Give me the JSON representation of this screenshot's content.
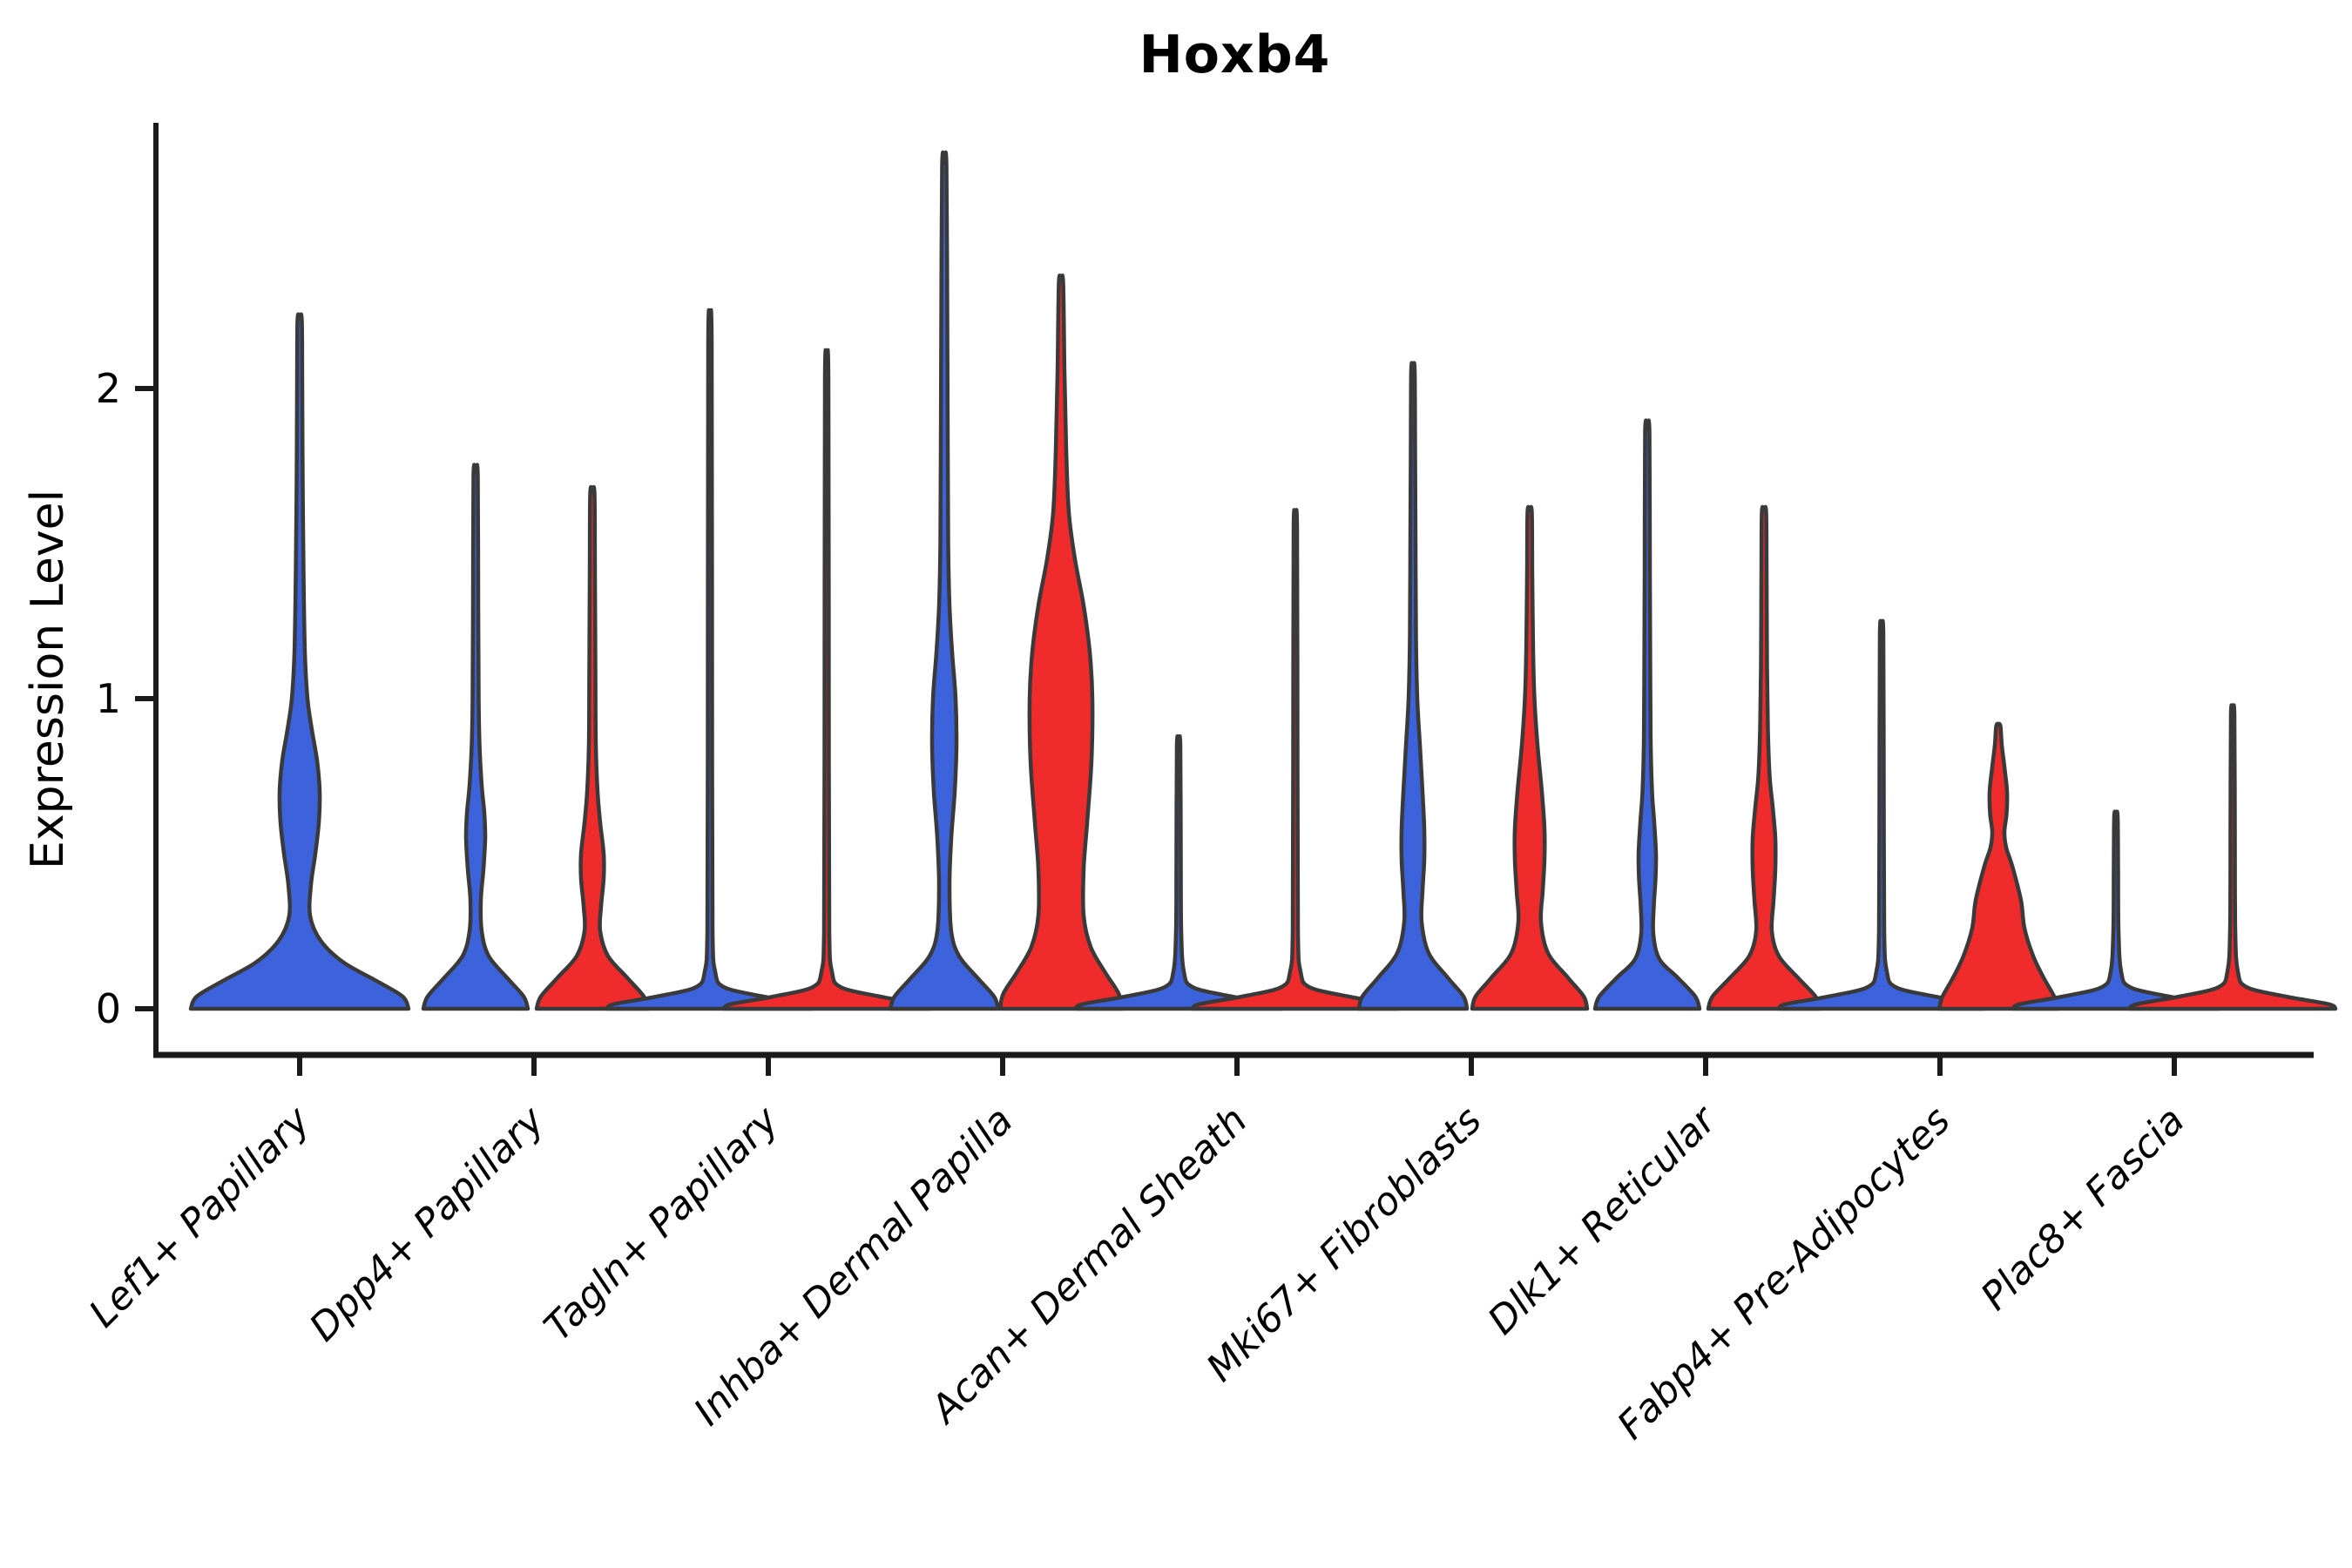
{
  "title": "Hoxb4",
  "colors": {
    "blue": "#3C63DB",
    "red": "#F02B2B",
    "outline": "#3A3A3A",
    "axis": "#1A1A1A",
    "text": "#000000",
    "background": "#FFFFFF"
  },
  "chart_data": {
    "type": "violin",
    "title": "Hoxb4",
    "xlabel": "",
    "ylabel": "Expression Level",
    "yticks": [
      0,
      1,
      2
    ],
    "ylim": [
      0,
      2.86
    ],
    "grid": false,
    "legend": "none",
    "categories": [
      "Lef1+ Papillary",
      "Dpp4+ Papillary",
      "Tagln+ Papillary",
      "Inhba+ Dermal Papilla",
      "Acan+ Dermal Sheath",
      "Mki67+ Fibroblasts",
      "Dlk1+ Reticular",
      "Fabp4+ Pre-Adipocytes",
      "Plac8+ Fascia"
    ],
    "profile_note": "profile = [expression_value, half_width_px]; violin outline mirrored around its center",
    "groups": [
      {
        "category": "Lef1+ Papillary",
        "violins": [
          {
            "series": "blue",
            "position": "center",
            "max": 2.22,
            "profile": [
              [
                0,
                125
              ],
              [
                0.04,
                118
              ],
              [
                0.09,
                88
              ],
              [
                0.15,
                50
              ],
              [
                0.22,
                24
              ],
              [
                0.3,
                12
              ],
              [
                0.4,
                13
              ],
              [
                0.5,
                18
              ],
              [
                0.6,
                22
              ],
              [
                0.7,
                23
              ],
              [
                0.8,
                20
              ],
              [
                0.9,
                14
              ],
              [
                1.0,
                9
              ],
              [
                1.15,
                6
              ],
              [
                1.4,
                4.5
              ],
              [
                1.7,
                3.5
              ],
              [
                2.0,
                3
              ],
              [
                2.22,
                2.5
              ]
            ]
          }
        ]
      },
      {
        "category": "Dpp4+ Papillary",
        "violins": [
          {
            "series": "blue",
            "position": "left",
            "max": 1.72,
            "profile": [
              [
                0,
                60
              ],
              [
                0.04,
                55
              ],
              [
                0.1,
                36
              ],
              [
                0.17,
                15
              ],
              [
                0.25,
                7
              ],
              [
                0.35,
                6
              ],
              [
                0.45,
                9
              ],
              [
                0.55,
                11
              ],
              [
                0.63,
                10
              ],
              [
                0.72,
                7
              ],
              [
                0.85,
                4.5
              ],
              [
                1.0,
                3.5
              ],
              [
                1.3,
                3
              ],
              [
                1.72,
                2.5
              ]
            ]
          },
          {
            "series": "red",
            "position": "right",
            "max": 1.66,
            "profile": [
              [
                0,
                64
              ],
              [
                0.04,
                59
              ],
              [
                0.1,
                40
              ],
              [
                0.17,
                18
              ],
              [
                0.25,
                9
              ],
              [
                0.33,
                10
              ],
              [
                0.42,
                13
              ],
              [
                0.5,
                13
              ],
              [
                0.6,
                9
              ],
              [
                0.7,
                6
              ],
              [
                0.85,
                4
              ],
              [
                1.1,
                3.5
              ],
              [
                1.4,
                3
              ],
              [
                1.66,
                2.5
              ]
            ]
          }
        ]
      },
      {
        "category": "Tagln+ Papillary",
        "violins": [
          {
            "series": "blue",
            "position": "left",
            "max": 2.15,
            "profile": [
              [
                0,
                118
              ],
              [
                0.015,
                110
              ],
              [
                0.04,
                60
              ],
              [
                0.07,
                16
              ],
              [
                0.12,
                6
              ],
              [
                0.25,
                3
              ],
              [
                0.8,
                2.5
              ],
              [
                2.15,
                2
              ]
            ]
          },
          {
            "series": "red",
            "position": "right",
            "max": 2.03,
            "profile": [
              [
                0,
                118
              ],
              [
                0.015,
                110
              ],
              [
                0.04,
                60
              ],
              [
                0.07,
                16
              ],
              [
                0.12,
                6
              ],
              [
                0.25,
                3
              ],
              [
                0.8,
                2.5
              ],
              [
                2.03,
                2
              ]
            ]
          }
        ]
      },
      {
        "category": "Inhba+ Dermal Papilla",
        "violins": [
          {
            "series": "blue",
            "position": "left",
            "max": 2.72,
            "profile": [
              [
                0,
                62
              ],
              [
                0.04,
                57
              ],
              [
                0.1,
                38
              ],
              [
                0.17,
                17
              ],
              [
                0.25,
                8
              ],
              [
                0.4,
                6
              ],
              [
                0.55,
                8
              ],
              [
                0.7,
                12
              ],
              [
                0.85,
                14
              ],
              [
                1.0,
                13
              ],
              [
                1.15,
                9
              ],
              [
                1.3,
                6
              ],
              [
                1.5,
                4.5
              ],
              [
                1.8,
                4
              ],
              [
                2.2,
                3.5
              ],
              [
                2.72,
                2.5
              ]
            ]
          },
          {
            "series": "red",
            "position": "right",
            "max": 2.34,
            "profile": [
              [
                0,
                70
              ],
              [
                0.05,
                66
              ],
              [
                0.12,
                50
              ],
              [
                0.2,
                34
              ],
              [
                0.3,
                26
              ],
              [
                0.45,
                26
              ],
              [
                0.6,
                30
              ],
              [
                0.8,
                35
              ],
              [
                1.0,
                36
              ],
              [
                1.15,
                33
              ],
              [
                1.3,
                26
              ],
              [
                1.45,
                16
              ],
              [
                1.6,
                9
              ],
              [
                1.8,
                6
              ],
              [
                2.05,
                4
              ],
              [
                2.34,
                2.5
              ]
            ]
          }
        ]
      },
      {
        "category": "Acan+ Dermal Sheath",
        "violins": [
          {
            "series": "blue",
            "position": "left",
            "max": 0.85,
            "profile": [
              [
                0,
                118
              ],
              [
                0.015,
                110
              ],
              [
                0.04,
                60
              ],
              [
                0.07,
                16
              ],
              [
                0.12,
                6
              ],
              [
                0.25,
                3
              ],
              [
                0.5,
                2.5
              ],
              [
                0.85,
                2
              ]
            ]
          },
          {
            "series": "red",
            "position": "right",
            "max": 1.55,
            "profile": [
              [
                0,
                118
              ],
              [
                0.015,
                110
              ],
              [
                0.04,
                60
              ],
              [
                0.07,
                16
              ],
              [
                0.12,
                6
              ],
              [
                0.25,
                3
              ],
              [
                0.8,
                2.5
              ],
              [
                1.55,
                2
              ]
            ]
          }
        ]
      },
      {
        "category": "Mki67+ Fibroblasts",
        "violins": [
          {
            "series": "blue",
            "position": "left",
            "max": 2.06,
            "profile": [
              [
                0,
                62
              ],
              [
                0.04,
                58
              ],
              [
                0.1,
                40
              ],
              [
                0.18,
                18
              ],
              [
                0.28,
                10
              ],
              [
                0.38,
                11
              ],
              [
                0.48,
                13
              ],
              [
                0.58,
                13
              ],
              [
                0.7,
                11
              ],
              [
                0.85,
                8
              ],
              [
                1.0,
                5
              ],
              [
                1.2,
                3.5
              ],
              [
                1.5,
                3
              ],
              [
                1.8,
                2.5
              ],
              [
                2.06,
                2
              ]
            ]
          },
          {
            "series": "red",
            "position": "right",
            "max": 1.6,
            "profile": [
              [
                0,
                66
              ],
              [
                0.04,
                62
              ],
              [
                0.1,
                44
              ],
              [
                0.18,
                21
              ],
              [
                0.28,
                13
              ],
              [
                0.38,
                15
              ],
              [
                0.48,
                17
              ],
              [
                0.58,
                17
              ],
              [
                0.7,
                14
              ],
              [
                0.85,
                9
              ],
              [
                1.0,
                5.5
              ],
              [
                1.15,
                4
              ],
              [
                1.4,
                3
              ],
              [
                1.6,
                2.5
              ]
            ]
          }
        ]
      },
      {
        "category": "Dlk1+ Reticular",
        "violins": [
          {
            "series": "blue",
            "position": "left",
            "max": 1.86,
            "profile": [
              [
                0,
                60
              ],
              [
                0.04,
                55
              ],
              [
                0.1,
                35
              ],
              [
                0.16,
                14
              ],
              [
                0.24,
                7
              ],
              [
                0.33,
                7.5
              ],
              [
                0.42,
                9.5
              ],
              [
                0.5,
                10
              ],
              [
                0.6,
                8
              ],
              [
                0.7,
                5.5
              ],
              [
                0.85,
                4
              ],
              [
                1.05,
                3.5
              ],
              [
                1.4,
                3
              ],
              [
                1.86,
                2.5
              ]
            ]
          },
          {
            "series": "red",
            "position": "right",
            "max": 1.6,
            "profile": [
              [
                0,
                64
              ],
              [
                0.04,
                59
              ],
              [
                0.1,
                39
              ],
              [
                0.17,
                17
              ],
              [
                0.25,
                9
              ],
              [
                0.35,
                11
              ],
              [
                0.45,
                13
              ],
              [
                0.55,
                13
              ],
              [
                0.65,
                10
              ],
              [
                0.75,
                6.5
              ],
              [
                0.9,
                4.5
              ],
              [
                1.1,
                3.5
              ],
              [
                1.4,
                3
              ],
              [
                1.6,
                2.5
              ]
            ]
          }
        ]
      },
      {
        "category": "Fabp4+ Pre-Adipocytes",
        "violins": [
          {
            "series": "blue",
            "position": "left",
            "max": 1.21,
            "profile": [
              [
                0,
                118
              ],
              [
                0.015,
                110
              ],
              [
                0.04,
                60
              ],
              [
                0.07,
                16
              ],
              [
                0.12,
                6
              ],
              [
                0.25,
                3
              ],
              [
                0.7,
                2.5
              ],
              [
                1.21,
                2
              ]
            ]
          },
          {
            "series": "red",
            "position": "right",
            "max": 0.91,
            "profile": [
              [
                0,
                68
              ],
              [
                0.04,
                64
              ],
              [
                0.1,
                52
              ],
              [
                0.17,
                40
              ],
              [
                0.26,
                30
              ],
              [
                0.35,
                26
              ],
              [
                0.46,
                16
              ],
              [
                0.52,
                9
              ],
              [
                0.57,
                7
              ],
              [
                0.63,
                9.5
              ],
              [
                0.7,
                10
              ],
              [
                0.78,
                7
              ],
              [
                0.85,
                4
              ],
              [
                0.91,
                2.5
              ]
            ]
          }
        ]
      },
      {
        "category": "Plac8+ Fascia",
        "violins": [
          {
            "series": "blue",
            "position": "left",
            "max": 0.62,
            "profile": [
              [
                0,
                118
              ],
              [
                0.015,
                110
              ],
              [
                0.04,
                60
              ],
              [
                0.07,
                16
              ],
              [
                0.12,
                6
              ],
              [
                0.25,
                3
              ],
              [
                0.45,
                2.5
              ],
              [
                0.62,
                2
              ]
            ]
          },
          {
            "series": "red",
            "position": "right",
            "max": 0.95,
            "profile": [
              [
                0,
                118
              ],
              [
                0.015,
                110
              ],
              [
                0.04,
                60
              ],
              [
                0.07,
                16
              ],
              [
                0.12,
                6
              ],
              [
                0.25,
                3
              ],
              [
                0.6,
                2.5
              ],
              [
                0.95,
                2
              ]
            ]
          }
        ]
      }
    ]
  }
}
